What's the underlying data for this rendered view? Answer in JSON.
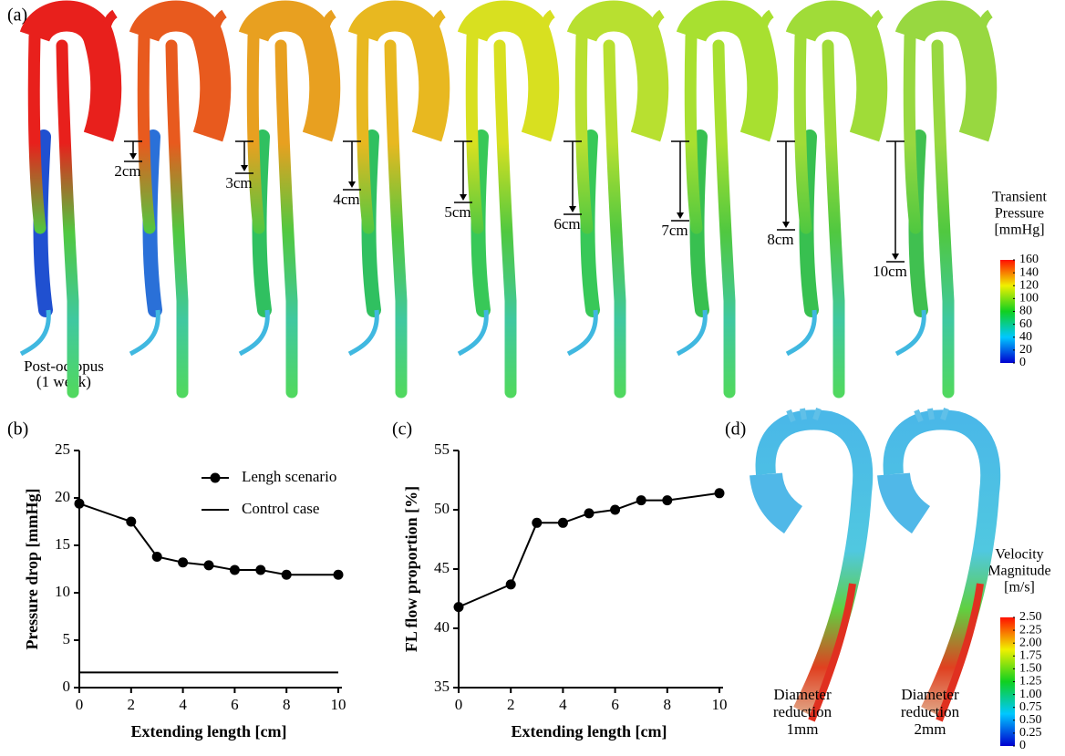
{
  "panel_a": {
    "label": "(a)",
    "extensions": [
      "2cm",
      "3cm",
      "4cm",
      "5cm",
      "6cm",
      "7cm",
      "8cm",
      "10cm"
    ],
    "baseline_label": [
      "Post-octopus",
      "(1 week)"
    ],
    "colorbar": {
      "title": [
        "Transient",
        "Pressure",
        "[mmHg]"
      ],
      "ticks": [
        0,
        20,
        40,
        60,
        80,
        100,
        120,
        140,
        160
      ]
    }
  },
  "chart_data": [
    {
      "type": "line",
      "panel_label": "(b)",
      "x_label": "Extending length [cm]",
      "y_label": "Pressure drop [mmHg]",
      "x": [
        0,
        2,
        3,
        4,
        5,
        6,
        7,
        8,
        10
      ],
      "series": [
        {
          "name": "Lengh scenario",
          "color": "#000000",
          "marker": "circle",
          "values": [
            19.4,
            17.5,
            13.8,
            13.2,
            12.9,
            12.4,
            12.4,
            11.9,
            11.9
          ]
        },
        {
          "name": "Control case",
          "color": "#000000",
          "values": [
            1.6,
            1.6,
            1.6,
            1.6,
            1.6,
            1.6,
            1.6,
            1.6,
            1.6
          ]
        }
      ],
      "xlim": [
        0,
        10
      ],
      "xticks": [
        0,
        2,
        4,
        6,
        8,
        10
      ],
      "ylim": [
        0,
        25
      ],
      "yticks": [
        0,
        5,
        10,
        15,
        20,
        25
      ],
      "legend": "upper right"
    },
    {
      "type": "line",
      "panel_label": "(c)",
      "x_label": "Extending length [cm]",
      "y_label": "FL flow proportion [%]",
      "x": [
        0,
        2,
        3,
        4,
        5,
        6,
        7,
        8,
        10
      ],
      "series": [
        {
          "color": "#000000",
          "marker": "circle",
          "values": [
            41.8,
            43.7,
            48.9,
            48.9,
            49.7,
            50.0,
            50.8,
            50.8,
            51.4
          ]
        }
      ],
      "xlim": [
        0,
        10
      ],
      "xticks": [
        0,
        2,
        4,
        6,
        8,
        10
      ],
      "ylim": [
        35,
        55
      ],
      "yticks": [
        35,
        40,
        45,
        50,
        55
      ]
    }
  ],
  "panel_d": {
    "label": "(d)",
    "captions": [
      [
        "Diameter",
        "reduction",
        "1mm"
      ],
      [
        "Diameter",
        "reduction",
        "2mm"
      ]
    ],
    "colorbar": {
      "title": [
        "Velocity",
        "Magnitude",
        "[m/s]"
      ],
      "ticks": [
        {
          "value": 0,
          "label": "0"
        },
        {
          "value": 0.25,
          "label": "0.25"
        },
        {
          "value": 0.5,
          "label": "0.50"
        },
        {
          "value": 0.75,
          "label": "0.75"
        },
        {
          "value": 1,
          "label": "1.00"
        },
        {
          "value": 1.25,
          "label": "1.25"
        },
        {
          "value": 1.5,
          "label": "1.50"
        },
        {
          "value": 1.75,
          "label": "1.75"
        },
        {
          "value": 2,
          "label": "2.00"
        },
        {
          "value": 2.25,
          "label": "2.25"
        },
        {
          "value": 2.5,
          "label": "2.50"
        }
      ]
    }
  }
}
